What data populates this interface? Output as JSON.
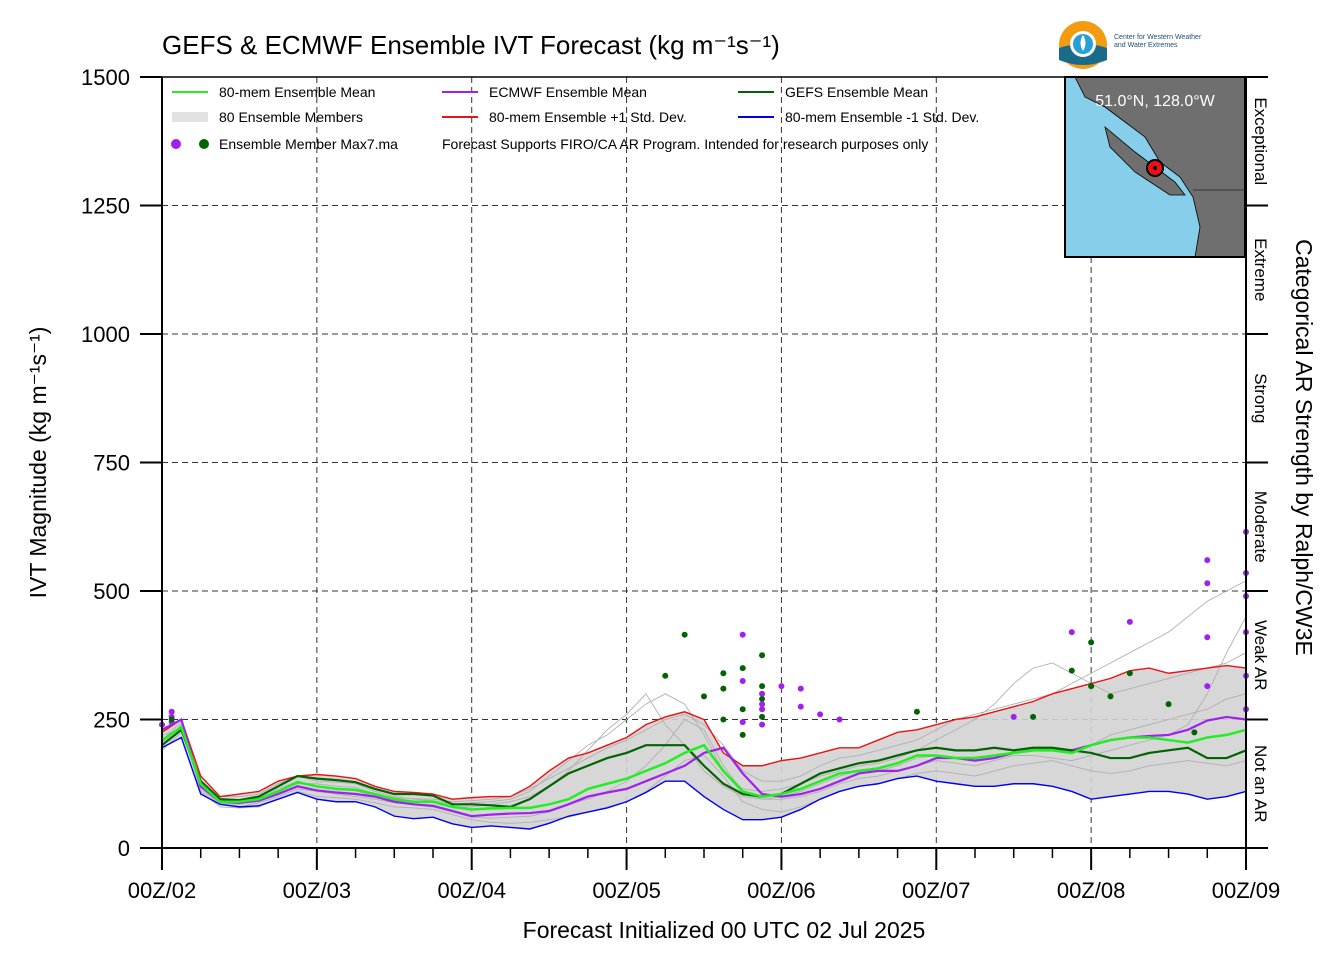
{
  "title": "GEFS & ECMWF Ensemble IVT Forecast (kg m⁻¹s⁻¹)",
  "logo": {
    "line1": "Center for Western Weather",
    "line2": "and Water Extremes"
  },
  "inset_label": "51.0°N, 128.0°W",
  "colors": {
    "mean80": "#22ee22",
    "ecmwf": "#a020f0",
    "gefs": "#006400",
    "plus1": "#ee1111",
    "minus1": "#0000ee",
    "members": "#b0b0b0",
    "spread": "#d3d3d3",
    "ocean": "#87ceeb",
    "land": "#6f6f6f"
  },
  "legend": [
    {
      "label": "80-mem Ensemble Mean",
      "color": "#22ee22"
    },
    {
      "label": "ECMWF Ensemble Mean",
      "color": "#a020f0"
    },
    {
      "label": "GEFS Ensemble Mean",
      "color": "#006400"
    },
    {
      "label": "80 Ensemble Members",
      "color": "#b0b0b0"
    },
    {
      "label": "80-mem Ensemble +1 Std. Dev.",
      "color": "#ee1111"
    },
    {
      "label": "80-mem Ensemble -1 Std. Dev.",
      "color": "#0000ee"
    },
    {
      "label": "Ensemble Member Max7.ma",
      "color": "#a020f0"
    }
  ],
  "disclaimer": "Forecast Supports FIRO/CA AR Program. Intended for research purposes only",
  "chart_data": {
    "type": "line",
    "title": "GEFS & ECMWF Ensemble IVT Forecast (kg m⁻¹s⁻¹)",
    "xlabel": "Forecast Initialized 00 UTC 02 Jul 2025",
    "ylabel": "IVT Magnitude (kg m⁻¹s⁻¹)",
    "ylabel_right": "Categorical AR Strength by Ralph/CW3E",
    "ylim": [
      0,
      1500
    ],
    "xlim": [
      0,
      168
    ],
    "yticks": [
      0,
      250,
      500,
      750,
      1000,
      1250,
      1500
    ],
    "xticks": [
      0,
      24,
      48,
      72,
      96,
      120,
      144,
      168
    ],
    "xtick_labels": [
      "00Z/02",
      "00Z/03",
      "00Z/04",
      "00Z/05",
      "00Z/06",
      "00Z/07",
      "00Z/08",
      "00Z/09"
    ],
    "x_unit": "forecast hour",
    "grid": true,
    "legend_position": "top-left",
    "categories_right": [
      {
        "label": "Not an AR",
        "range": [
          0,
          250
        ]
      },
      {
        "label": "Weak AR",
        "range": [
          250,
          500
        ]
      },
      {
        "label": "Moderate",
        "range": [
          500,
          750
        ]
      },
      {
        "label": "Strong",
        "range": [
          750,
          1000
        ]
      },
      {
        "label": "Extreme",
        "range": [
          1000,
          1250
        ]
      },
      {
        "label": "Exceptional",
        "range": [
          1250,
          1500
        ]
      }
    ],
    "x": [
      0,
      3,
      6,
      9,
      12,
      15,
      18,
      21,
      24,
      27,
      30,
      33,
      36,
      39,
      42,
      45,
      48,
      51,
      54,
      57,
      60,
      63,
      66,
      69,
      72,
      75,
      78,
      81,
      84,
      87,
      90,
      93,
      96,
      99,
      102,
      105,
      108,
      111,
      114,
      117,
      120,
      123,
      126,
      129,
      132,
      135,
      138,
      141,
      144,
      147,
      150,
      153,
      156,
      159,
      162,
      165,
      168
    ],
    "series": [
      {
        "name": "80-mem Ensemble Mean",
        "values": [
          210,
          235,
          125,
          90,
          90,
          95,
          110,
          128,
          120,
          115,
          113,
          105,
          95,
          90,
          90,
          80,
          75,
          77,
          78,
          78,
          85,
          95,
          115,
          125,
          135,
          150,
          165,
          185,
          200,
          150,
          110,
          100,
          105,
          115,
          130,
          145,
          150,
          155,
          165,
          180,
          180,
          175,
          175,
          180,
          185,
          190,
          190,
          185,
          200,
          210,
          215,
          215,
          210,
          205,
          215,
          220,
          230
        ]
      },
      {
        "name": "ECMWF Ensemble Mean",
        "values": [
          230,
          250,
          120,
          90,
          88,
          92,
          105,
          120,
          112,
          108,
          105,
          100,
          90,
          85,
          82,
          72,
          62,
          65,
          67,
          68,
          72,
          85,
          100,
          108,
          115,
          130,
          145,
          160,
          185,
          195,
          145,
          105,
          100,
          105,
          115,
          130,
          145,
          150,
          150,
          160,
          175,
          175,
          170,
          175,
          185,
          190,
          190,
          190,
          200,
          210,
          215,
          218,
          220,
          230,
          248,
          255,
          250
        ]
      },
      {
        "name": "GEFS Ensemble Mean",
        "values": [
          200,
          230,
          130,
          95,
          93,
          100,
          120,
          140,
          135,
          132,
          128,
          115,
          105,
          105,
          102,
          85,
          85,
          83,
          80,
          95,
          120,
          145,
          160,
          175,
          185,
          200,
          200,
          200,
          160,
          125,
          105,
          100,
          105,
          125,
          145,
          155,
          165,
          170,
          180,
          190,
          195,
          190,
          190,
          195,
          190,
          195,
          195,
          190,
          185,
          175,
          175,
          185,
          190,
          195,
          175,
          175,
          190
        ]
      },
      {
        "name": "80-mem Ensemble +1 Std. Dev.",
        "values": [
          225,
          250,
          140,
          100,
          105,
          110,
          130,
          140,
          143,
          140,
          135,
          120,
          110,
          108,
          105,
          95,
          98,
          100,
          100,
          120,
          150,
          175,
          185,
          200,
          215,
          240,
          255,
          265,
          250,
          185,
          160,
          160,
          170,
          175,
          185,
          195,
          195,
          210,
          225,
          230,
          240,
          250,
          255,
          265,
          275,
          285,
          300,
          310,
          320,
          330,
          345,
          350,
          340,
          345,
          350,
          355,
          350
        ]
      },
      {
        "name": "80-mem Ensemble -1 Std. Dev.",
        "values": [
          195,
          215,
          105,
          85,
          80,
          82,
          95,
          108,
          95,
          90,
          90,
          80,
          62,
          57,
          60,
          47,
          40,
          43,
          40,
          37,
          48,
          62,
          70,
          78,
          90,
          108,
          130,
          130,
          100,
          75,
          55,
          55,
          60,
          75,
          95,
          110,
          120,
          125,
          135,
          140,
          130,
          125,
          120,
          120,
          125,
          125,
          120,
          110,
          95,
          100,
          105,
          110,
          110,
          105,
          95,
          100,
          110
        ]
      }
    ],
    "members_approx": [
      [
        200,
        240,
        120,
        88,
        85,
        95,
        115,
        130,
        120,
        115,
        112,
        100,
        92,
        90,
        92,
        80,
        80,
        85,
        90,
        100,
        120,
        150,
        190,
        230,
        260,
        300,
        240,
        200,
        150,
        120,
        100,
        95,
        100,
        110,
        125,
        140,
        150,
        150,
        160,
        175,
        180,
        175,
        175,
        180,
        185,
        195,
        190,
        185,
        200,
        220,
        230,
        240,
        250,
        260,
        270,
        290,
        300
      ],
      [
        220,
        230,
        115,
        85,
        80,
        88,
        100,
        115,
        110,
        105,
        100,
        95,
        88,
        85,
        80,
        70,
        60,
        58,
        60,
        62,
        70,
        85,
        95,
        110,
        130,
        160,
        200,
        250,
        230,
        160,
        110,
        95,
        95,
        100,
        110,
        125,
        135,
        140,
        150,
        160,
        170,
        165,
        160,
        170,
        180,
        180,
        175,
        170,
        180,
        190,
        200,
        210,
        220,
        240,
        300,
        380,
        450
      ],
      [
        190,
        225,
        130,
        100,
        100,
        105,
        125,
        140,
        130,
        128,
        125,
        110,
        100,
        95,
        92,
        85,
        88,
        90,
        95,
        110,
        140,
        170,
        200,
        220,
        250,
        280,
        300,
        280,
        220,
        150,
        115,
        110,
        115,
        125,
        140,
        150,
        160,
        165,
        175,
        190,
        210,
        230,
        250,
        280,
        320,
        350,
        360,
        340,
        320,
        300,
        310,
        320,
        330,
        340,
        350,
        360,
        380
      ],
      [
        210,
        245,
        110,
        80,
        78,
        80,
        95,
        110,
        100,
        98,
        95,
        88,
        80,
        78,
        75,
        65,
        55,
        50,
        48,
        50,
        55,
        60,
        70,
        80,
        90,
        110,
        140,
        170,
        180,
        140,
        90,
        75,
        70,
        80,
        95,
        110,
        120,
        125,
        135,
        145,
        150,
        145,
        140,
        150,
        160,
        165,
        170,
        160,
        150,
        145,
        150,
        160,
        165,
        170,
        165,
        160,
        170
      ],
      [
        205,
        235,
        125,
        92,
        90,
        98,
        112,
        125,
        125,
        120,
        118,
        105,
        98,
        96,
        95,
        90,
        92,
        95,
        100,
        115,
        135,
        155,
        175,
        195,
        210,
        230,
        250,
        260,
        240,
        200,
        150,
        130,
        130,
        140,
        160,
        175,
        180,
        190,
        200,
        210,
        230,
        250,
        260,
        270,
        280,
        290,
        300,
        320,
        340,
        360,
        380,
        400,
        420,
        450,
        480,
        500,
        520
      ]
    ],
    "max_markers": [
      {
        "x": 0,
        "y": 240,
        "series": "ECMWF"
      },
      {
        "x": 1.5,
        "y": 265,
        "series": "ECMWF"
      },
      {
        "x": 1.5,
        "y": 255,
        "series": "ECMWF"
      },
      {
        "x": 1.5,
        "y": 245,
        "series": "ECMWF"
      },
      {
        "x": 1.5,
        "y": 250,
        "series": "GEFS"
      },
      {
        "x": 78,
        "y": 335,
        "series": "GEFS"
      },
      {
        "x": 81,
        "y": 415,
        "series": "GEFS"
      },
      {
        "x": 84,
        "y": 295,
        "series": "GEFS"
      },
      {
        "x": 87,
        "y": 340,
        "series": "GEFS"
      },
      {
        "x": 87,
        "y": 310,
        "series": "GEFS"
      },
      {
        "x": 87,
        "y": 250,
        "series": "GEFS"
      },
      {
        "x": 90,
        "y": 415,
        "series": "ECMWF"
      },
      {
        "x": 90,
        "y": 350,
        "series": "GEFS"
      },
      {
        "x": 90,
        "y": 325,
        "series": "ECMWF"
      },
      {
        "x": 90,
        "y": 270,
        "series": "GEFS"
      },
      {
        "x": 90,
        "y": 245,
        "series": "ECMWF"
      },
      {
        "x": 90,
        "y": 220,
        "series": "GEFS"
      },
      {
        "x": 93,
        "y": 375,
        "series": "GEFS"
      },
      {
        "x": 93,
        "y": 315,
        "series": "GEFS"
      },
      {
        "x": 93,
        "y": 300,
        "series": "ECMWF"
      },
      {
        "x": 93,
        "y": 290,
        "series": "GEFS"
      },
      {
        "x": 93,
        "y": 280,
        "series": "ECMWF"
      },
      {
        "x": 93,
        "y": 270,
        "series": "ECMWF"
      },
      {
        "x": 93,
        "y": 255,
        "series": "GEFS"
      },
      {
        "x": 93,
        "y": 240,
        "series": "ECMWF"
      },
      {
        "x": 96,
        "y": 315,
        "series": "ECMWF"
      },
      {
        "x": 99,
        "y": 310,
        "series": "ECMWF"
      },
      {
        "x": 99,
        "y": 275,
        "series": "ECMWF"
      },
      {
        "x": 102,
        "y": 260,
        "series": "ECMWF"
      },
      {
        "x": 105,
        "y": 250,
        "series": "ECMWF"
      },
      {
        "x": 117,
        "y": 265,
        "series": "GEFS"
      },
      {
        "x": 132,
        "y": 255,
        "series": "ECMWF"
      },
      {
        "x": 135,
        "y": 255,
        "series": "GEFS"
      },
      {
        "x": 141,
        "y": 420,
        "series": "ECMWF"
      },
      {
        "x": 141,
        "y": 345,
        "series": "GEFS"
      },
      {
        "x": 144,
        "y": 400,
        "series": "GEFS"
      },
      {
        "x": 144,
        "y": 315,
        "series": "GEFS"
      },
      {
        "x": 147,
        "y": 295,
        "series": "GEFS"
      },
      {
        "x": 150,
        "y": 440,
        "series": "ECMWF"
      },
      {
        "x": 150,
        "y": 340,
        "series": "GEFS"
      },
      {
        "x": 156,
        "y": 280,
        "series": "GEFS"
      },
      {
        "x": 162,
        "y": 560,
        "series": "ECMWF"
      },
      {
        "x": 162,
        "y": 515,
        "series": "ECMWF"
      },
      {
        "x": 162,
        "y": 410,
        "series": "ECMWF"
      },
      {
        "x": 162,
        "y": 315,
        "series": "ECMWF"
      },
      {
        "x": 168,
        "y": 615,
        "series": "ECMWF"
      },
      {
        "x": 168,
        "y": 535,
        "series": "ECMWF"
      },
      {
        "x": 168,
        "y": 490,
        "series": "ECMWF"
      },
      {
        "x": 168,
        "y": 420,
        "series": "ECMWF"
      },
      {
        "x": 168,
        "y": 335,
        "series": "ECMWF"
      },
      {
        "x": 168,
        "y": 270,
        "series": "ECMWF"
      },
      {
        "x": 160,
        "y": 225,
        "series": "GEFS"
      }
    ]
  }
}
